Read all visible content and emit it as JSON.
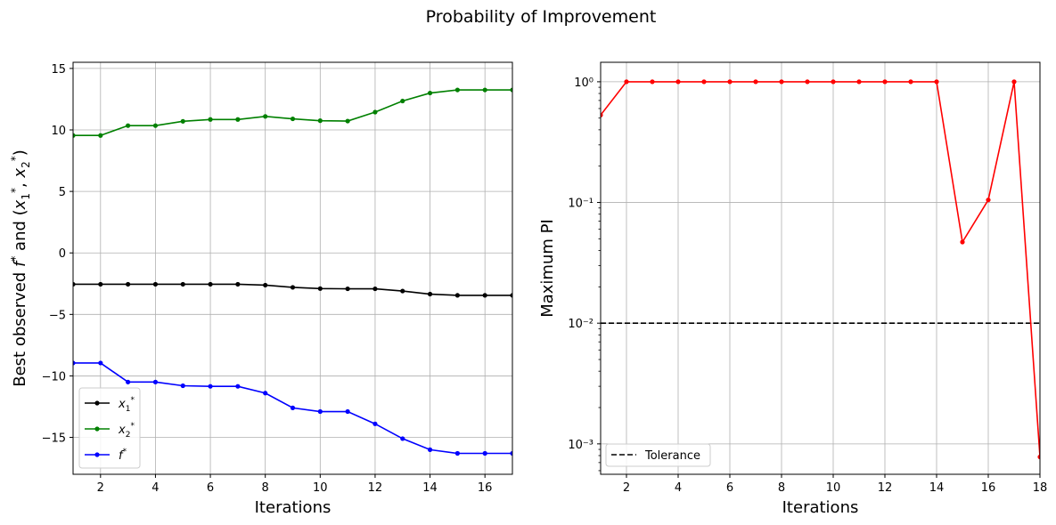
{
  "figure": {
    "title": "Probability of Improvement"
  },
  "chart_data": [
    {
      "type": "line",
      "xlabel": "Iterations",
      "ylabel": "Best observed f* and (x1*, x2*)",
      "xlim": [
        1,
        17
      ],
      "ylim": [
        -18,
        15.5
      ],
      "xticks": [
        2,
        4,
        6,
        8,
        10,
        12,
        14,
        16
      ],
      "yticks": [
        -15,
        -10,
        -5,
        0,
        5,
        10,
        15
      ],
      "xtick_labels": [
        "2",
        "4",
        "6",
        "8",
        "10",
        "12",
        "14",
        "16"
      ],
      "ytick_labels": [
        "−15",
        "−10",
        "−5",
        "0",
        "5",
        "10",
        "15"
      ],
      "grid": true,
      "legend_position": "lower-left",
      "x": [
        1,
        2,
        3,
        4,
        5,
        6,
        7,
        8,
        9,
        10,
        11,
        12,
        13,
        14,
        15,
        16,
        17
      ],
      "series": [
        {
          "name": "x1*",
          "color": "#000000",
          "values": [
            -2.55,
            -2.55,
            -2.55,
            -2.55,
            -2.55,
            -2.55,
            -2.55,
            -2.62,
            -2.8,
            -2.9,
            -2.92,
            -2.92,
            -3.1,
            -3.35,
            -3.45,
            -3.45,
            -3.45
          ]
        },
        {
          "name": "x2*",
          "color": "#008000",
          "values": [
            9.55,
            9.55,
            10.35,
            10.35,
            10.7,
            10.85,
            10.85,
            11.1,
            10.9,
            10.75,
            10.72,
            11.45,
            12.35,
            13.0,
            13.25,
            13.25,
            13.25
          ]
        },
        {
          "name": "f*",
          "color": "#0000ff",
          "values": [
            -8.95,
            -8.95,
            -10.5,
            -10.5,
            -10.8,
            -10.85,
            -10.85,
            -11.4,
            -12.6,
            -12.9,
            -12.9,
            -13.9,
            -15.1,
            -16.0,
            -16.3,
            -16.3,
            -16.3
          ]
        }
      ]
    },
    {
      "type": "line",
      "yscale": "log",
      "xlabel": "Iterations",
      "ylabel": "Maximum PI",
      "xlim": [
        1,
        18
      ],
      "ylim": [
        0.00056,
        1.45
      ],
      "xticks": [
        2,
        4,
        6,
        8,
        10,
        12,
        14,
        16,
        18
      ],
      "yticks": [
        0.001,
        0.01,
        0.1,
        1
      ],
      "xtick_labels": [
        "2",
        "4",
        "6",
        "8",
        "10",
        "12",
        "14",
        "16",
        "18"
      ],
      "grid": true,
      "legend_position": "lower-left",
      "x": [
        1,
        2,
        3,
        4,
        5,
        6,
        7,
        8,
        9,
        10,
        11,
        12,
        13,
        14,
        15,
        16,
        17,
        18
      ],
      "series": [
        {
          "color": "#ff0000",
          "values": [
            0.53,
            1,
            1,
            1,
            1,
            1,
            1,
            1,
            1,
            1,
            1,
            1,
            1,
            1,
            0.047,
            0.105,
            1,
            0.00078
          ]
        }
      ],
      "hlines": [
        {
          "name": "Tolerance",
          "y": 0.01,
          "color": "#000000",
          "style": "dashed"
        }
      ]
    }
  ]
}
